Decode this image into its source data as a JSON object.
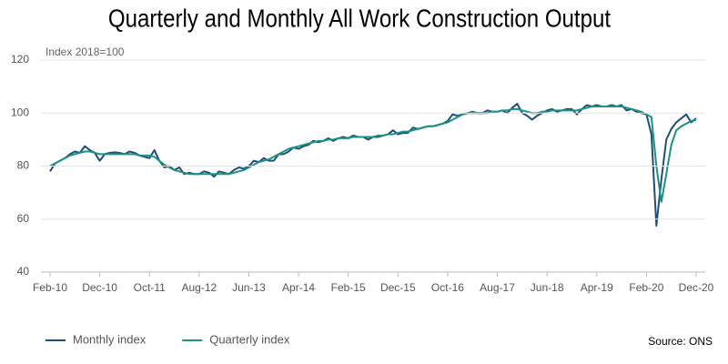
{
  "chart_data": {
    "type": "line",
    "title": "Quarterly and Monthly All Work Construction Output",
    "y_axis_label": "Index 2018=100",
    "source": "Source: ONS",
    "categories": [
      "Feb-10",
      null,
      null,
      null,
      null,
      null,
      null,
      null,
      null,
      null,
      "Dec-10",
      null,
      null,
      null,
      null,
      null,
      null,
      null,
      null,
      null,
      "Oct-11",
      null,
      null,
      null,
      null,
      null,
      null,
      null,
      null,
      null,
      "Aug-12",
      null,
      null,
      null,
      null,
      null,
      null,
      null,
      null,
      null,
      "Jun-13",
      null,
      null,
      null,
      null,
      null,
      null,
      null,
      null,
      null,
      "Apr-14",
      null,
      null,
      null,
      null,
      null,
      null,
      null,
      null,
      null,
      "Feb-15",
      null,
      null,
      null,
      null,
      null,
      null,
      null,
      null,
      null,
      "Dec-15",
      null,
      null,
      null,
      null,
      null,
      null,
      null,
      null,
      null,
      "Oct-16",
      null,
      null,
      null,
      null,
      null,
      null,
      null,
      null,
      null,
      "Aug-17",
      null,
      null,
      null,
      null,
      null,
      null,
      null,
      null,
      null,
      "Jun-18",
      null,
      null,
      null,
      null,
      null,
      null,
      null,
      null,
      null,
      "Apr-19",
      null,
      null,
      null,
      null,
      null,
      null,
      null,
      null,
      null,
      "Feb-20",
      null,
      null,
      null,
      null,
      null,
      null,
      null,
      null,
      null,
      "Dec-20"
    ],
    "series": [
      {
        "name": "Monthly index",
        "color": "#1f4e79",
        "values": [
          78,
          81,
          82,
          83,
          84.5,
          85.5,
          85,
          87.5,
          86,
          85,
          82,
          84.5,
          85,
          85.2,
          85,
          84.5,
          85.5,
          85,
          84,
          83.5,
          83,
          86,
          82,
          79.5,
          80,
          78.5,
          79.5,
          77,
          77.5,
          77,
          77,
          78,
          77.5,
          76,
          78,
          77.5,
          77,
          78.5,
          79.5,
          79,
          80,
          82,
          81.5,
          83,
          82,
          82,
          84.5,
          84.5,
          85.5,
          87,
          86.5,
          87.5,
          88,
          89.5,
          89,
          89.5,
          90.5,
          89.5,
          90.5,
          91,
          90.5,
          91.5,
          91,
          91,
          90,
          91,
          91,
          91.5,
          92,
          93.5,
          92,
          92.5,
          92.5,
          94.5,
          94,
          94.5,
          95,
          95,
          95.5,
          96,
          97,
          99.5,
          99,
          99.5,
          100,
          100.5,
          100,
          100,
          101,
          100.5,
          100.5,
          101,
          100,
          102,
          103.5,
          100,
          99,
          97.5,
          99,
          100,
          101,
          101.5,
          100.5,
          101,
          101.5,
          101.5,
          99.5,
          101.5,
          103,
          102.5,
          103,
          102.5,
          102.5,
          103,
          102.5,
          103,
          101,
          101.5,
          100.5,
          100,
          99.5,
          92,
          57.5,
          75,
          90,
          94,
          96.5,
          98,
          99.5,
          96.5,
          98
        ]
      },
      {
        "name": "Quarterly index",
        "color": "#1a9383",
        "values": [
          80,
          81,
          82,
          83,
          84,
          84.5,
          85,
          85.5,
          85.5,
          85,
          84.5,
          84.5,
          84.5,
          84.5,
          84.5,
          84.5,
          84.5,
          84.5,
          84,
          84,
          84,
          83.5,
          82,
          80.5,
          79.5,
          78.5,
          78,
          77.5,
          77,
          77,
          77,
          77,
          77,
          77,
          77,
          77,
          77,
          77.5,
          78,
          78.5,
          79.5,
          80.5,
          81.5,
          82,
          82.5,
          83.5,
          84.5,
          85.5,
          86.5,
          87,
          87.5,
          88,
          88.5,
          89,
          89.5,
          89.5,
          90,
          90,
          90.5,
          90.5,
          90.5,
          91,
          91,
          91,
          91,
          91,
          91.5,
          91.5,
          92,
          92,
          92.5,
          93,
          93,
          93.5,
          94,
          94.5,
          95,
          95,
          95.5,
          96,
          96.5,
          97.5,
          98.5,
          99.5,
          100,
          100,
          100,
          100,
          100,
          100.5,
          100.5,
          101,
          101,
          101.5,
          101.5,
          101,
          100.5,
          100,
          100,
          100.5,
          100.5,
          101,
          101,
          101,
          101,
          101,
          101,
          101.5,
          102,
          102.5,
          102.5,
          102.5,
          102.5,
          102.5,
          102.5,
          102.5,
          102,
          101.5,
          101,
          100.5,
          99.5,
          98.5,
          80,
          66.5,
          77,
          88,
          93.5,
          95,
          96,
          97,
          97.5
        ]
      }
    ],
    "ylim": [
      40,
      120
    ],
    "yticks": [
      40,
      60,
      80,
      100,
      120
    ],
    "grid": true,
    "legend": "bottom"
  }
}
